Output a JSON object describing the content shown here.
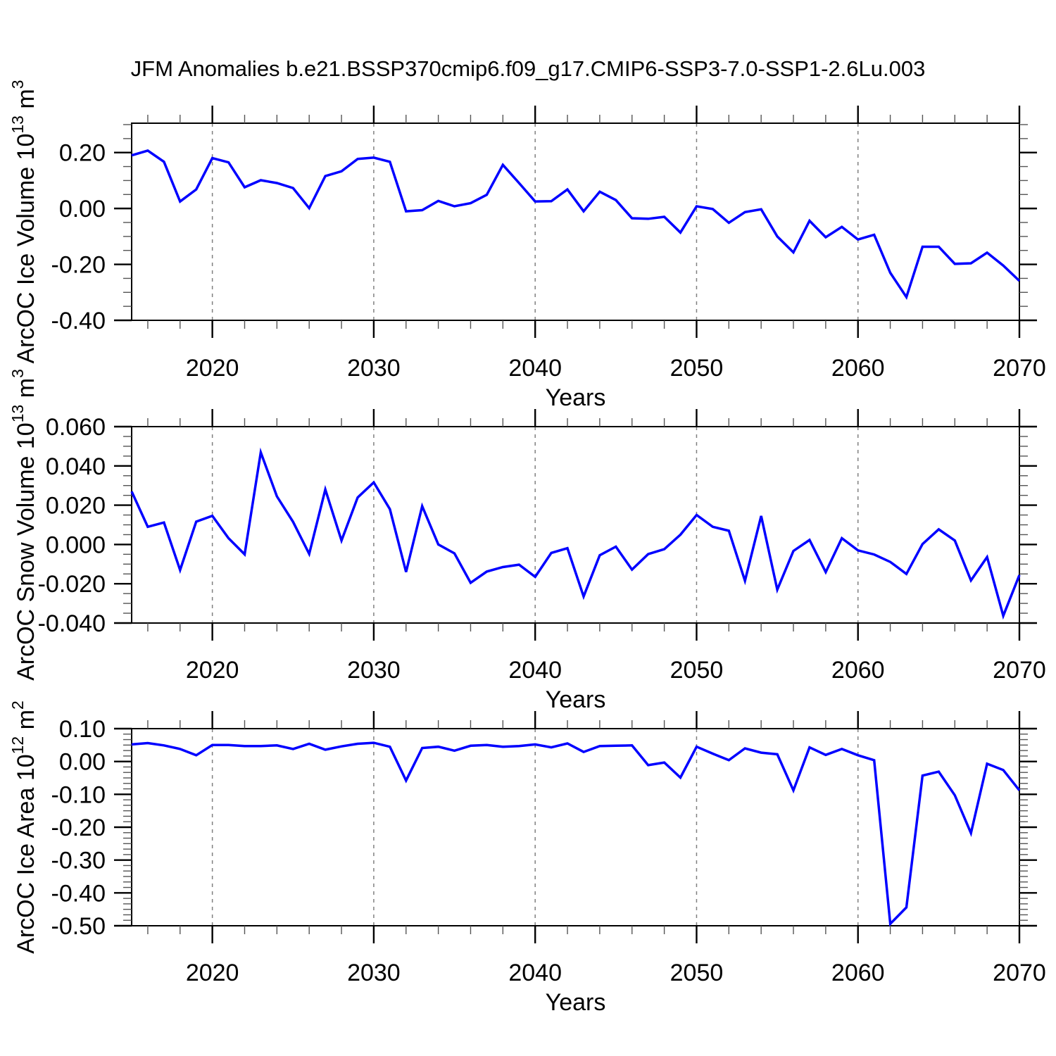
{
  "title": "JFM Anomalies b.e21.BSSP370cmip6.f09_g17.CMIP6-SSP3-7.0-SSP1-2.6Lu.003",
  "figure": {
    "background": "#ffffff",
    "line_color": "#0000ff",
    "axis_color": "#000000",
    "grid_color": "#808080"
  },
  "x_axis": {
    "label": "Years",
    "start_year": 2015,
    "end_year": 2070,
    "major_ticks": [
      2020,
      2030,
      2040,
      2050,
      2060,
      2070
    ],
    "major_tick_labels": [
      "2020",
      "2030",
      "2040",
      "2050",
      "2060",
      "2070"
    ],
    "minor_step": 2,
    "grid_years": [
      2020,
      2030,
      2040,
      2050,
      2060
    ]
  },
  "chart_data": [
    {
      "type": "line",
      "name": "arcoc-ice-volume",
      "ylabel": "ArcOC Ice Volume 10^13 m^3",
      "ylabel_segments": [
        {
          "t": "ArcOC Ice Volume 10"
        },
        {
          "t": "13",
          "sup": true
        },
        {
          "t": " m"
        },
        {
          "t": "3",
          "sup": true
        }
      ],
      "xlabel": "Years",
      "ylim": [
        -0.4,
        0.305
      ],
      "ymajor_step": 0.2,
      "yminor_divs": 4,
      "yticks": [
        {
          "v": 0.2,
          "label": "0.20"
        },
        {
          "v": 0.0,
          "label": "0.00"
        },
        {
          "v": -0.2,
          "label": "-0.20"
        },
        {
          "v": -0.4,
          "label": "-0.40"
        }
      ],
      "grid": "x-dashed",
      "legend": "none",
      "values": [
        0.19,
        0.207,
        0.167,
        0.025,
        0.068,
        0.18,
        0.165,
        0.076,
        0.101,
        0.091,
        0.073,
        0.001,
        0.116,
        0.133,
        0.177,
        0.182,
        0.167,
        -0.01,
        -0.006,
        0.027,
        0.008,
        0.019,
        0.049,
        0.156,
        0.091,
        0.025,
        0.026,
        0.068,
        -0.01,
        0.06,
        0.03,
        -0.035,
        -0.037,
        -0.03,
        -0.086,
        0.008,
        -0.002,
        -0.051,
        -0.013,
        -0.003,
        -0.1,
        -0.157,
        -0.044,
        -0.103,
        -0.066,
        -0.111,
        -0.094,
        -0.23,
        -0.317,
        -0.137,
        -0.137,
        -0.198,
        -0.196,
        -0.158,
        -0.204,
        -0.259
      ]
    },
    {
      "type": "line",
      "name": "arcoc-snow-volume",
      "ylabel": "ArcOC Snow Volume 10^13 m^3",
      "ylabel_segments": [
        {
          "t": "ArcOC Snow Volume 10"
        },
        {
          "t": "13",
          "sup": true
        },
        {
          "t": " m"
        },
        {
          "t": "3",
          "sup": true
        }
      ],
      "xlabel": "Years",
      "ylim": [
        -0.04,
        0.06
      ],
      "ymajor_step": 0.02,
      "yminor_divs": 4,
      "yticks": [
        {
          "v": 0.06,
          "label": "0.060"
        },
        {
          "v": 0.04,
          "label": "0.040"
        },
        {
          "v": 0.02,
          "label": "0.020"
        },
        {
          "v": 0.0,
          "label": "0.000"
        },
        {
          "v": -0.02,
          "label": "-0.020"
        },
        {
          "v": -0.04,
          "label": "-0.040"
        }
      ],
      "grid": "x-dashed",
      "legend": "none",
      "values": [
        0.027,
        0.009,
        0.0112,
        -0.013,
        0.0116,
        0.0146,
        0.0032,
        -0.005,
        0.0469,
        0.0245,
        0.0115,
        -0.0048,
        0.028,
        0.002,
        0.0239,
        0.0316,
        0.018,
        -0.014,
        0.0195,
        0.0,
        -0.0045,
        -0.0195,
        -0.0138,
        -0.0115,
        -0.0103,
        -0.0165,
        -0.0043,
        -0.0019,
        -0.0265,
        -0.0055,
        -0.0011,
        -0.0128,
        -0.0049,
        -0.0024,
        0.005,
        0.015,
        0.009,
        0.007,
        -0.0185,
        0.0145,
        -0.023,
        -0.0033,
        0.0023,
        -0.0141,
        0.0032,
        -0.003,
        -0.0051,
        -0.0089,
        -0.015,
        0.0002,
        0.0077,
        0.002,
        -0.0183,
        -0.0064,
        -0.0363,
        -0.0156
      ]
    },
    {
      "type": "line",
      "name": "arcoc-ice-area",
      "ylabel": "ArcOC Ice Area 10^12 m^2",
      "ylabel_segments": [
        {
          "t": "ArcOC Ice Area 10"
        },
        {
          "t": "12",
          "sup": true
        },
        {
          "t": " m"
        },
        {
          "t": "2",
          "sup": true
        }
      ],
      "xlabel": "Years",
      "ylim": [
        -0.5,
        0.1
      ],
      "ymajor_step": 0.1,
      "yminor_divs": 6,
      "yticks": [
        {
          "v": 0.1,
          "label": "0.10"
        },
        {
          "v": 0.0,
          "label": "0.00"
        },
        {
          "v": -0.1,
          "label": "-0.10"
        },
        {
          "v": -0.2,
          "label": "-0.20"
        },
        {
          "v": -0.3,
          "label": "-0.30"
        },
        {
          "v": -0.4,
          "label": "-0.40"
        },
        {
          "v": -0.5,
          "label": "-0.50"
        }
      ],
      "grid": "x-dashed",
      "legend": "none",
      "values": [
        0.052,
        0.056,
        0.049,
        0.038,
        0.019,
        0.05,
        0.05,
        0.047,
        0.047,
        0.049,
        0.038,
        0.054,
        0.036,
        0.046,
        0.054,
        0.057,
        0.045,
        -0.058,
        0.041,
        0.045,
        0.033,
        0.048,
        0.05,
        0.045,
        0.047,
        0.052,
        0.043,
        0.055,
        0.029,
        0.047,
        0.048,
        0.049,
        -0.011,
        -0.003,
        -0.049,
        0.045,
        0.024,
        0.004,
        0.04,
        0.027,
        0.022,
        -0.088,
        0.043,
        0.02,
        0.038,
        0.019,
        0.004,
        -0.494,
        -0.444,
        -0.043,
        -0.031,
        -0.103,
        -0.218,
        -0.007,
        -0.026,
        -0.088
      ]
    }
  ]
}
